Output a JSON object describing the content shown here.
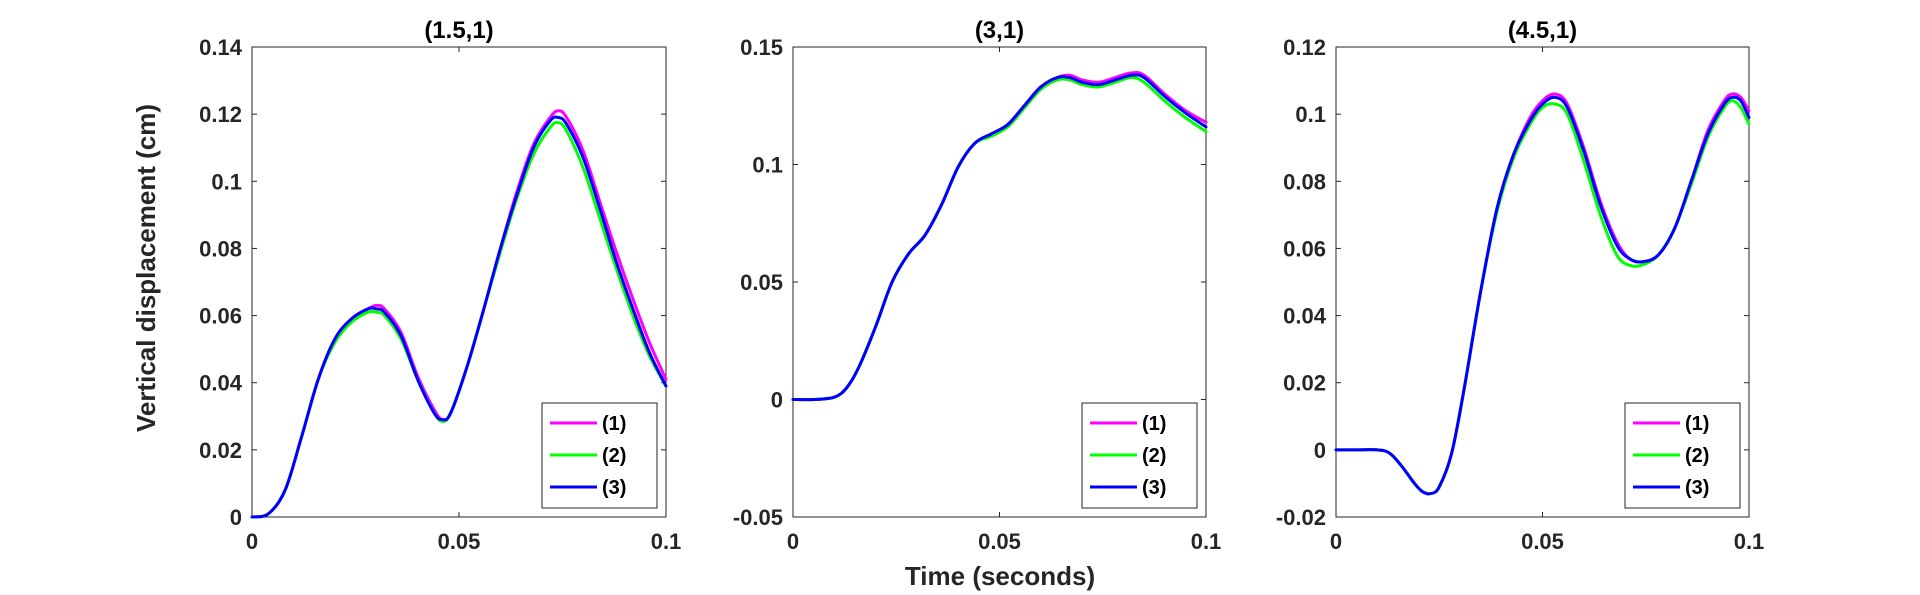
{
  "figure": {
    "xlabel": "Time (seconds)",
    "ylabel": "Vertical displacement (cm)"
  },
  "chart_data": [
    {
      "type": "line",
      "title": "(1.5,1)",
      "xlim": [
        0,
        0.1
      ],
      "ylim": [
        0,
        0.14
      ],
      "xticks": [
        0,
        0.05,
        0.1
      ],
      "xtick_labels": [
        "0",
        "0.05",
        "0.1"
      ],
      "yticks": [
        0,
        0.02,
        0.04,
        0.06,
        0.08,
        0.1,
        0.12,
        0.14
      ],
      "ytick_labels": [
        "0",
        "0.02",
        "0.04",
        "0.06",
        "0.08",
        "0.1",
        "0.12",
        "0.14"
      ],
      "grid": false,
      "legend": "bottom-right",
      "x": [
        0,
        0.004,
        0.008,
        0.012,
        0.016,
        0.02,
        0.024,
        0.028,
        0.03,
        0.032,
        0.036,
        0.04,
        0.044,
        0.046,
        0.048,
        0.052,
        0.056,
        0.06,
        0.064,
        0.068,
        0.072,
        0.074,
        0.076,
        0.08,
        0.084,
        0.088,
        0.092,
        0.096,
        0.1
      ],
      "series": [
        {
          "name": "(1)",
          "color": "#ff00ff",
          "values": [
            0,
            0.001,
            0.008,
            0.024,
            0.041,
            0.053,
            0.059,
            0.062,
            0.063,
            0.062,
            0.055,
            0.042,
            0.032,
            0.029,
            0.031,
            0.045,
            0.062,
            0.08,
            0.097,
            0.111,
            0.119,
            0.121,
            0.119,
            0.109,
            0.094,
            0.079,
            0.065,
            0.052,
            0.041
          ]
        },
        {
          "name": "(2)",
          "color": "#00ff00",
          "values": [
            0,
            0.001,
            0.008,
            0.024,
            0.041,
            0.052,
            0.058,
            0.061,
            0.061,
            0.06,
            0.053,
            0.041,
            0.031,
            0.0285,
            0.031,
            0.045,
            0.062,
            0.079,
            0.095,
            0.108,
            0.116,
            0.1175,
            0.115,
            0.104,
            0.089,
            0.074,
            0.06,
            0.048,
            0.039
          ]
        },
        {
          "name": "(3)",
          "color": "#0000ff",
          "values": [
            0,
            0.001,
            0.008,
            0.024,
            0.041,
            0.053,
            0.059,
            0.062,
            0.062,
            0.061,
            0.054,
            0.041,
            0.031,
            0.029,
            0.031,
            0.045,
            0.062,
            0.08,
            0.096,
            0.11,
            0.118,
            0.119,
            0.117,
            0.107,
            0.092,
            0.076,
            0.062,
            0.049,
            0.039
          ]
        }
      ]
    },
    {
      "type": "line",
      "title": "(3,1)",
      "xlim": [
        0,
        0.1
      ],
      "ylim": [
        -0.05,
        0.15
      ],
      "xticks": [
        0,
        0.05,
        0.1
      ],
      "xtick_labels": [
        "0",
        "0.05",
        "0.1"
      ],
      "yticks": [
        -0.05,
        0,
        0.05,
        0.1,
        0.15
      ],
      "ytick_labels": [
        "-0.05",
        "0",
        "0.05",
        "0.1",
        "0.15"
      ],
      "grid": false,
      "legend": "bottom-right",
      "x": [
        0,
        0.005,
        0.01,
        0.013,
        0.016,
        0.02,
        0.024,
        0.028,
        0.032,
        0.036,
        0.04,
        0.044,
        0.048,
        0.052,
        0.056,
        0.06,
        0.064,
        0.067,
        0.07,
        0.074,
        0.078,
        0.082,
        0.085,
        0.09,
        0.095,
        0.1
      ],
      "series": [
        {
          "name": "(1)",
          "color": "#ff00ff",
          "values": [
            0,
            0,
            0.001,
            0.005,
            0.014,
            0.031,
            0.05,
            0.062,
            0.07,
            0.083,
            0.099,
            0.109,
            0.113,
            0.117,
            0.125,
            0.133,
            0.137,
            0.138,
            0.136,
            0.135,
            0.137,
            0.139,
            0.138,
            0.13,
            0.123,
            0.118
          ]
        },
        {
          "name": "(2)",
          "color": "#00ff00",
          "values": [
            0,
            0,
            0.001,
            0.005,
            0.014,
            0.031,
            0.05,
            0.062,
            0.07,
            0.083,
            0.099,
            0.109,
            0.112,
            0.116,
            0.124,
            0.132,
            0.136,
            0.136,
            0.134,
            0.133,
            0.135,
            0.137,
            0.135,
            0.127,
            0.12,
            0.114
          ]
        },
        {
          "name": "(3)",
          "color": "#0000ff",
          "values": [
            0,
            0,
            0.001,
            0.005,
            0.014,
            0.031,
            0.05,
            0.062,
            0.07,
            0.083,
            0.099,
            0.109,
            0.113,
            0.117,
            0.125,
            0.133,
            0.137,
            0.137,
            0.135,
            0.134,
            0.136,
            0.138,
            0.137,
            0.129,
            0.122,
            0.116
          ]
        }
      ]
    },
    {
      "type": "line",
      "title": "(4.5,1)",
      "xlim": [
        0,
        0.1
      ],
      "ylim": [
        -0.02,
        0.12
      ],
      "xticks": [
        0,
        0.05,
        0.1
      ],
      "xtick_labels": [
        "0",
        "0.05",
        "0.1"
      ],
      "yticks": [
        -0.02,
        0,
        0.02,
        0.04,
        0.06,
        0.08,
        0.1,
        0.12
      ],
      "ytick_labels": [
        "-0.02",
        "0",
        "0.02",
        "0.04",
        "0.06",
        "0.08",
        "0.1",
        "0.12"
      ],
      "grid": false,
      "legend": "bottom-right",
      "x": [
        0,
        0.005,
        0.01,
        0.013,
        0.016,
        0.019,
        0.021,
        0.023,
        0.025,
        0.028,
        0.031,
        0.035,
        0.039,
        0.043,
        0.047,
        0.05,
        0.053,
        0.056,
        0.06,
        0.064,
        0.068,
        0.071,
        0.074,
        0.078,
        0.082,
        0.086,
        0.09,
        0.094,
        0.096,
        0.098,
        0.1
      ],
      "series": [
        {
          "name": "(1)",
          "color": "#ff00ff",
          "values": [
            0,
            0,
            0,
            -0.001,
            -0.005,
            -0.01,
            -0.0125,
            -0.013,
            -0.011,
            -0.001,
            0.018,
            0.047,
            0.072,
            0.088,
            0.099,
            0.104,
            0.106,
            0.103,
            0.09,
            0.074,
            0.062,
            0.057,
            0.056,
            0.058,
            0.066,
            0.08,
            0.095,
            0.104,
            0.106,
            0.105,
            0.101
          ]
        },
        {
          "name": "(2)",
          "color": "#00ff00",
          "values": [
            0,
            0,
            0,
            -0.001,
            -0.005,
            -0.01,
            -0.0125,
            -0.013,
            -0.011,
            -0.001,
            0.018,
            0.047,
            0.071,
            0.087,
            0.097,
            0.102,
            0.103,
            0.1,
            0.086,
            0.07,
            0.058,
            0.055,
            0.055,
            0.058,
            0.066,
            0.079,
            0.093,
            0.102,
            0.104,
            0.102,
            0.097
          ]
        },
        {
          "name": "(3)",
          "color": "#0000ff",
          "values": [
            0,
            0,
            0,
            -0.001,
            -0.005,
            -0.01,
            -0.0125,
            -0.013,
            -0.011,
            -0.001,
            0.018,
            0.047,
            0.072,
            0.088,
            0.098,
            0.103,
            0.105,
            0.102,
            0.089,
            0.073,
            0.061,
            0.057,
            0.056,
            0.058,
            0.066,
            0.08,
            0.094,
            0.103,
            0.105,
            0.104,
            0.099
          ]
        }
      ]
    }
  ]
}
